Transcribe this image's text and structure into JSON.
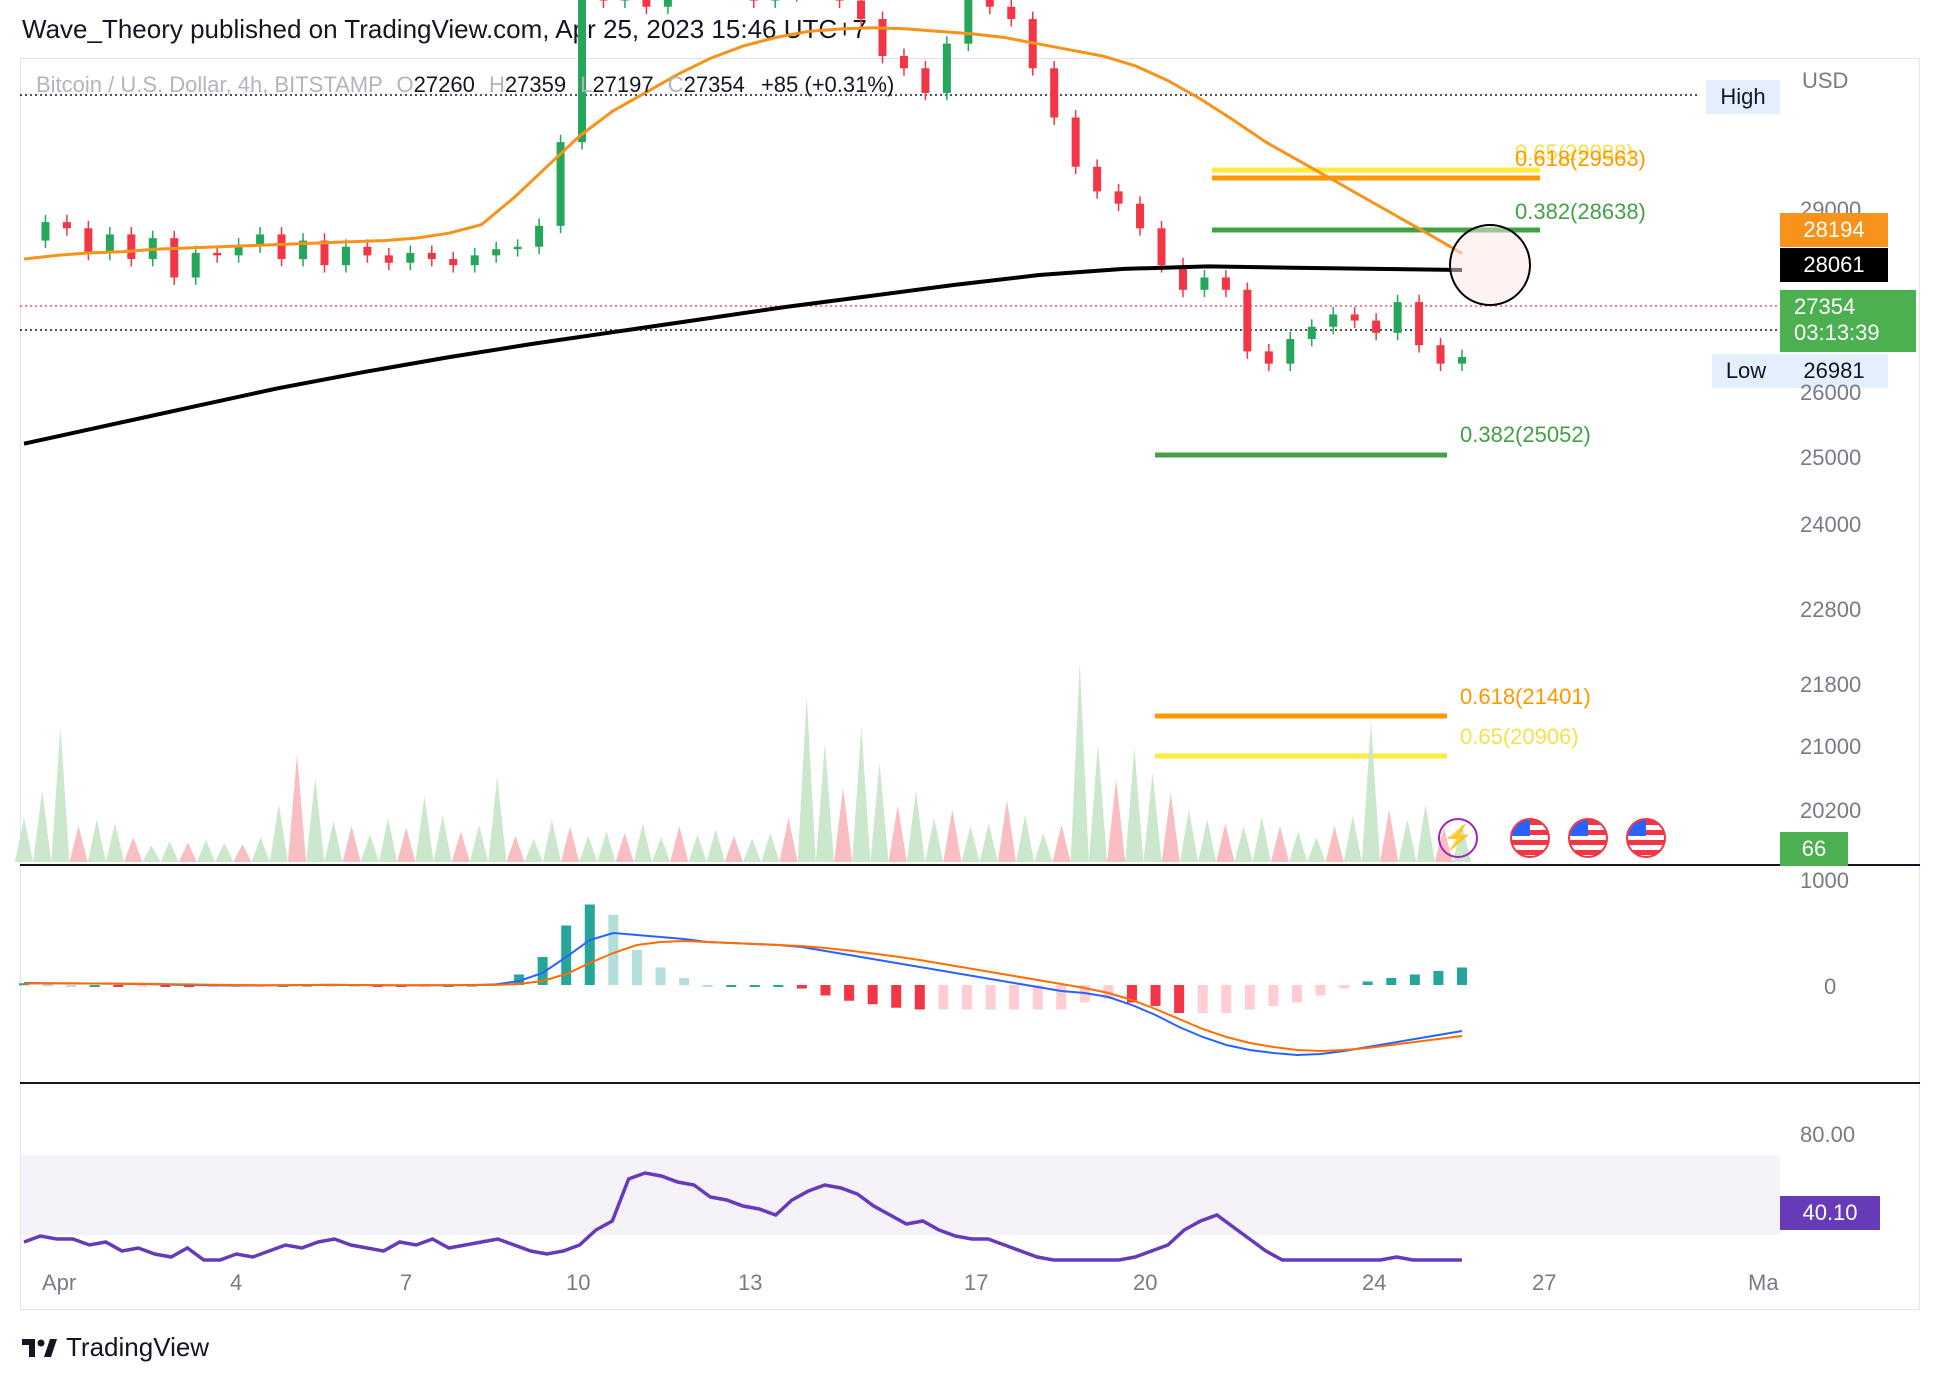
{
  "publisher": "Wave_Theory published on TradingView.com, Apr 25, 2023 15:46 UTC+7",
  "brand": "TradingView",
  "legend": {
    "symbol": "Bitcoin / U.S. Dollar, 4h, BITSTAMP",
    "o_label": "O",
    "o": "27260",
    "h_label": "H",
    "h": "27359",
    "l_label": "L",
    "l": "27197",
    "c_label": "C",
    "c": "27354",
    "change": "+85 (+0.31%)"
  },
  "axis": {
    "currency": "USD",
    "price_ticks": [
      "29000",
      "26000",
      "25000",
      "24000",
      "22800",
      "21800",
      "21000",
      "20200"
    ],
    "volume_tick": "1000",
    "macd_tick": "0",
    "rsi_tick": "80.00",
    "x_ticks": [
      "Apr",
      "4",
      "7",
      "10",
      "13",
      "17",
      "20",
      "24",
      "27",
      "Ma"
    ]
  },
  "tags": {
    "high_label": "High",
    "low_label": "Low",
    "low_value": "26981",
    "ema50": "28194",
    "ema200": "28061",
    "last_price": "27354",
    "countdown": "03:13:39",
    "volume": "66",
    "rsi": "40.10"
  },
  "fib_labels": {
    "f065_top": "0.65(29088)",
    "f0618_top": "0.618(29563)",
    "f0382_top": "0.382(28638)",
    "f0382_bottom": "0.382(25052)",
    "f0618_bottom": "0.618(21401)",
    "f065_bottom": "0.65(20906)"
  },
  "colors": {
    "up": "#26a69a",
    "candle_up": "#26a65b",
    "down": "#f23645",
    "ema50": "#f7931a",
    "ema200": "#000000",
    "fib_green": "#43a047",
    "fib_orange": "#ff9800",
    "fib_yellow": "#ffeb3b",
    "macd": "#2962ff",
    "signal": "#ff6d00",
    "rsi": "#673ab7",
    "last_price_tag": "#4caf50"
  },
  "chart_data": {
    "type": "candlestick",
    "timeframe": "4h",
    "x_range": [
      "2023-04-01",
      "2023-05-01"
    ],
    "price_axis_ticks": [
      29000,
      26000,
      25000,
      24000,
      22800,
      21800,
      21000,
      20200
    ],
    "close_series": [
      28300,
      28450,
      28400,
      28200,
      28350,
      28150,
      28320,
      28000,
      28200,
      28180,
      28260,
      28350,
      28150,
      28300,
      28100,
      28250,
      28180,
      28120,
      28200,
      28150,
      28100,
      28180,
      28230,
      28250,
      28420,
      29100,
      30300,
      30250,
      30400,
      30200,
      30350,
      30500,
      30600,
      30450,
      30250,
      30300,
      30350,
      30400,
      30250,
      30100,
      29800,
      29700,
      29500,
      29900,
      30300,
      30200,
      30100,
      29700,
      29300,
      28900,
      28700,
      28600,
      28400,
      28100,
      27900,
      28000,
      27900,
      27400,
      27300,
      27500,
      27600,
      27700,
      27650,
      27550,
      27800,
      27450,
      27300,
      27354
    ],
    "ema50": [
      28150,
      28180,
      28200,
      28210,
      28230,
      28240,
      28250,
      28260,
      28270,
      28280,
      28290,
      28300,
      28320,
      28360,
      28430,
      28650,
      28900,
      29150,
      29350,
      29500,
      29650,
      29780,
      29880,
      29950,
      30000,
      30020,
      30030,
      30020,
      30000,
      29980,
      29950,
      29900,
      29850,
      29800,
      29720,
      29600,
      29450,
      29280,
      29100,
      28950,
      28800,
      28650,
      28500,
      28350,
      28194
    ],
    "ema200": [
      26650,
      26800,
      26950,
      27100,
      27230,
      27350,
      27460,
      27560,
      27660,
      27760,
      27850,
      27940,
      28020,
      28070,
      28090,
      28080,
      28070,
      28061
    ],
    "fibonacci_levels": [
      {
        "label": "0.65",
        "value": 29088
      },
      {
        "label": "0.618",
        "value": 29563
      },
      {
        "label": "0.382",
        "value": 28638
      },
      {
        "label": "0.382",
        "value": 25052
      },
      {
        "label": "0.618",
        "value": 21401
      },
      {
        "label": "0.65",
        "value": 20906
      }
    ],
    "high_low": {
      "low": 26981
    },
    "last_price": 27354,
    "volume_last": 66,
    "volume_axis_tick": 1000,
    "volume": [
      320,
      520,
      980,
      260,
      310,
      280,
      180,
      120,
      150,
      140,
      160,
      140,
      130,
      180,
      420,
      780,
      610,
      300,
      260,
      200,
      320,
      250,
      480,
      340,
      220,
      270,
      620,
      190,
      170,
      310,
      260,
      190,
      220,
      210,
      280,
      180,
      260,
      200,
      240,
      190,
      170,
      210,
      320,
      1200,
      860,
      540,
      980,
      720,
      410,
      520,
      320,
      380,
      260,
      280,
      450,
      340,
      210,
      270,
      1450,
      860,
      600,
      830,
      650,
      500,
      380,
      310,
      280,
      260,
      330,
      260,
      220,
      180,
      260,
      340,
      1020,
      380,
      310,
      420,
      250,
      280
    ],
    "rsi_last": 40.1,
    "rsi_axis_tick": 80.0,
    "rsi": [
      51,
      53,
      52,
      52,
      50,
      51,
      48,
      49,
      47,
      46,
      49,
      45,
      44,
      47,
      46,
      48,
      50,
      49,
      51,
      52,
      50,
      49,
      48,
      51,
      50,
      52,
      49,
      50,
      51,
      52,
      50,
      48,
      47,
      48,
      50,
      55,
      58,
      72,
      74,
      73,
      71,
      70,
      66,
      65,
      63,
      62,
      60,
      65,
      68,
      70,
      69,
      67,
      63,
      60,
      57,
      58,
      55,
      53,
      52,
      52,
      50,
      48,
      46,
      44,
      43,
      41,
      40,
      42,
      46,
      48,
      50,
      55,
      58,
      60,
      56,
      52,
      48,
      45,
      42,
      40,
      38,
      37,
      39,
      43,
      46,
      44,
      42,
      41,
      40
    ],
    "macd_axis_tick": 0,
    "macd": [
      20,
      18,
      16,
      15,
      12,
      10,
      5,
      0,
      -3,
      -5,
      -4,
      -2,
      0,
      2,
      0,
      -2,
      -4,
      -3,
      -2,
      0,
      5,
      40,
      120,
      280,
      450,
      520,
      500,
      480,
      460,
      430,
      420,
      410,
      400,
      380,
      340,
      300,
      260,
      220,
      180,
      140,
      100,
      60,
      20,
      -20,
      -60,
      -80,
      -120,
      -200,
      -300,
      -420,
      -520,
      -600,
      -650,
      -680,
      -700,
      -690,
      -660,
      -620,
      -580,
      -540,
      -500,
      -460
    ],
    "signal": [
      15,
      16,
      16,
      15,
      14,
      12,
      9,
      6,
      3,
      0,
      -2,
      -2,
      -1,
      0,
      0,
      -1,
      -2,
      -2,
      -2,
      -1,
      1,
      10,
      40,
      110,
      220,
      320,
      400,
      430,
      440,
      430,
      420,
      410,
      400,
      390,
      370,
      345,
      315,
      285,
      250,
      210,
      170,
      130,
      90,
      50,
      10,
      -30,
      -80,
      -150,
      -240,
      -340,
      -440,
      -520,
      -580,
      -620,
      -650,
      -660,
      -650,
      -630,
      -600,
      -570,
      -540,
      -510
    ]
  }
}
